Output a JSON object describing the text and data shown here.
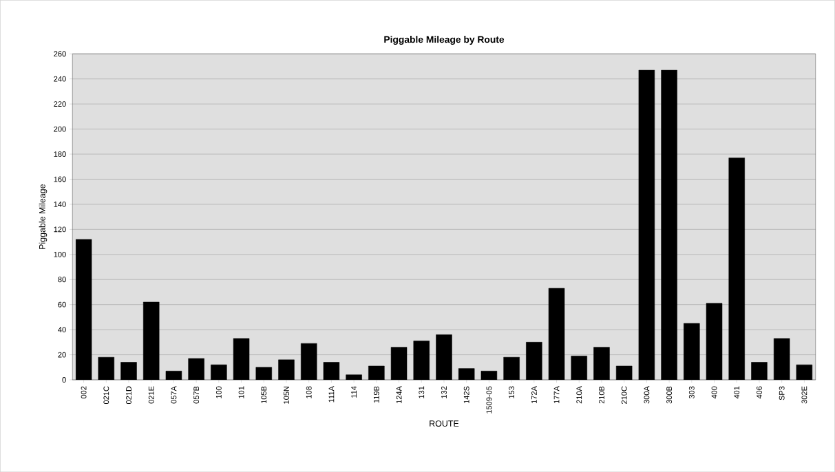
{
  "chart_data": {
    "type": "bar",
    "title": "Piggable Mileage by Route",
    "xlabel": "ROUTE",
    "ylabel": "Piggable Mileage",
    "categories": [
      "002",
      "021C",
      "021D",
      "021E",
      "057A",
      "057B",
      "100",
      "101",
      "105B",
      "105N",
      "108",
      "111A",
      "114",
      "119B",
      "124A",
      "131",
      "132",
      "142S",
      "1509-05",
      "153",
      "172A",
      "177A",
      "210A",
      "210B",
      "210C",
      "300A",
      "300B",
      "303",
      "400",
      "401",
      "406",
      "SP3",
      "302E"
    ],
    "values": [
      112,
      18,
      14,
      62,
      7,
      17,
      12,
      33,
      10,
      16,
      29,
      14,
      4,
      11,
      26,
      31,
      36,
      9,
      7,
      18,
      30,
      73,
      19,
      26,
      11,
      247,
      247,
      45,
      61,
      177,
      14,
      33,
      12
    ],
    "color": "#000000",
    "ylim": [
      0,
      260
    ],
    "yticks": [
      0,
      20,
      40,
      60,
      80,
      100,
      120,
      140,
      160,
      180,
      200,
      220,
      240,
      260
    ],
    "grid": "y"
  }
}
